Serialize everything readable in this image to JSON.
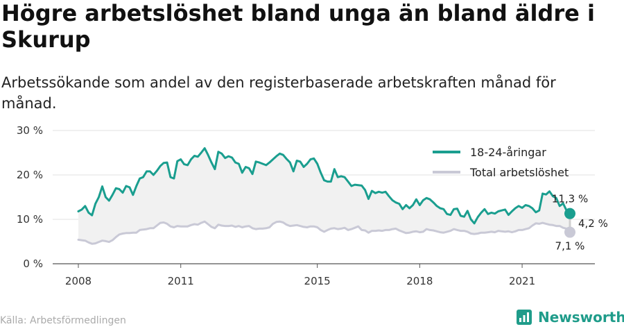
{
  "title": "Högre arbetslöshet bland unga än bland äldre i Skurup",
  "subtitle": "Arbetssökande som andel av den registerbaserade arbetskraften månad för månad.",
  "source": "Källa: Arbetsförmedlingen",
  "brand": "Newsworthy",
  "colors": {
    "youth": "#1a9e8f",
    "total": "#c9c9d6",
    "band": "#f1f1f1",
    "brand": "#1f9c8a"
  },
  "chart_data": {
    "type": "line",
    "xlabel": "",
    "ylabel": "",
    "ylim": [
      0,
      30
    ],
    "yticks": [
      0,
      10,
      20,
      30
    ],
    "ytick_labels": [
      "0 %",
      "10 %",
      "20 %",
      "30 %"
    ],
    "xlim": [
      2008.0,
      2022.4
    ],
    "xticks": [
      2008,
      2011,
      2015,
      2018,
      2021
    ],
    "xtick_labels": [
      "2008",
      "2011",
      "2015",
      "2018",
      "2021"
    ],
    "grid": true,
    "legend_position": "top-right",
    "series": [
      {
        "name": "18-24-åringar",
        "color": "#1a9e8f",
        "end_label": "11,3 %",
        "points": [
          [
            2008.0,
            11.8
          ],
          [
            2008.1,
            12.2
          ],
          [
            2008.2,
            13.0
          ],
          [
            2008.3,
            11.5
          ],
          [
            2008.4,
            10.9
          ],
          [
            2008.5,
            13.5
          ],
          [
            2008.6,
            15.0
          ],
          [
            2008.7,
            17.4
          ],
          [
            2008.8,
            15.0
          ],
          [
            2008.9,
            14.2
          ],
          [
            2009.0,
            15.5
          ],
          [
            2009.1,
            17.0
          ],
          [
            2009.2,
            16.8
          ],
          [
            2009.3,
            16.0
          ],
          [
            2009.4,
            17.5
          ],
          [
            2009.5,
            17.2
          ],
          [
            2009.6,
            15.5
          ],
          [
            2009.7,
            17.5
          ],
          [
            2009.8,
            19.2
          ],
          [
            2009.9,
            19.5
          ],
          [
            2010.0,
            20.8
          ],
          [
            2010.1,
            20.8
          ],
          [
            2010.2,
            20.0
          ],
          [
            2010.3,
            20.9
          ],
          [
            2010.4,
            22.0
          ],
          [
            2010.5,
            22.7
          ],
          [
            2010.6,
            22.8
          ],
          [
            2010.7,
            19.5
          ],
          [
            2010.8,
            19.2
          ],
          [
            2010.9,
            23.1
          ],
          [
            2011.0,
            23.5
          ],
          [
            2011.1,
            22.4
          ],
          [
            2011.2,
            22.2
          ],
          [
            2011.3,
            23.5
          ],
          [
            2011.4,
            24.3
          ],
          [
            2011.5,
            24.1
          ],
          [
            2011.6,
            25.0
          ],
          [
            2011.7,
            26.0
          ],
          [
            2011.8,
            24.5
          ],
          [
            2011.9,
            22.8
          ],
          [
            2012.0,
            21.3
          ],
          [
            2012.1,
            25.2
          ],
          [
            2012.2,
            24.8
          ],
          [
            2012.3,
            23.8
          ],
          [
            2012.4,
            24.2
          ],
          [
            2012.5,
            23.9
          ],
          [
            2012.6,
            22.8
          ],
          [
            2012.7,
            22.5
          ],
          [
            2012.8,
            20.5
          ],
          [
            2012.9,
            21.8
          ],
          [
            2013.0,
            21.5
          ],
          [
            2013.1,
            20.2
          ],
          [
            2013.2,
            23.0
          ],
          [
            2013.3,
            22.8
          ],
          [
            2013.4,
            22.5
          ],
          [
            2013.5,
            22.2
          ],
          [
            2013.6,
            22.8
          ],
          [
            2013.7,
            23.5
          ],
          [
            2013.8,
            24.2
          ],
          [
            2013.9,
            24.8
          ],
          [
            2014.0,
            24.5
          ],
          [
            2014.1,
            23.6
          ],
          [
            2014.2,
            22.8
          ],
          [
            2014.3,
            20.8
          ],
          [
            2014.4,
            23.2
          ],
          [
            2014.5,
            23.0
          ],
          [
            2014.6,
            21.8
          ],
          [
            2014.7,
            22.5
          ],
          [
            2014.8,
            23.5
          ],
          [
            2014.9,
            23.7
          ],
          [
            2015.0,
            22.5
          ],
          [
            2015.1,
            20.5
          ],
          [
            2015.2,
            18.8
          ],
          [
            2015.3,
            18.5
          ],
          [
            2015.4,
            18.5
          ],
          [
            2015.5,
            21.3
          ],
          [
            2015.6,
            19.5
          ],
          [
            2015.7,
            19.7
          ],
          [
            2015.8,
            19.5
          ],
          [
            2015.9,
            18.5
          ],
          [
            2016.0,
            17.5
          ],
          [
            2016.1,
            17.8
          ],
          [
            2016.2,
            17.7
          ],
          [
            2016.3,
            17.6
          ],
          [
            2016.4,
            16.6
          ],
          [
            2016.5,
            14.6
          ],
          [
            2016.6,
            16.4
          ],
          [
            2016.7,
            15.9
          ],
          [
            2016.8,
            16.2
          ],
          [
            2016.9,
            16.0
          ],
          [
            2017.0,
            16.2
          ],
          [
            2017.1,
            15.2
          ],
          [
            2017.2,
            14.3
          ],
          [
            2017.3,
            13.8
          ],
          [
            2017.4,
            13.5
          ],
          [
            2017.5,
            12.3
          ],
          [
            2017.6,
            13.2
          ],
          [
            2017.7,
            12.5
          ],
          [
            2017.8,
            13.2
          ],
          [
            2017.9,
            14.5
          ],
          [
            2018.0,
            13.2
          ],
          [
            2018.1,
            14.3
          ],
          [
            2018.2,
            14.8
          ],
          [
            2018.3,
            14.5
          ],
          [
            2018.4,
            13.8
          ],
          [
            2018.5,
            13.0
          ],
          [
            2018.6,
            12.5
          ],
          [
            2018.7,
            12.3
          ],
          [
            2018.8,
            11.2
          ],
          [
            2018.9,
            11.0
          ],
          [
            2019.0,
            12.3
          ],
          [
            2019.1,
            12.4
          ],
          [
            2019.2,
            10.8
          ],
          [
            2019.3,
            10.6
          ],
          [
            2019.4,
            11.9
          ],
          [
            2019.5,
            10.0
          ],
          [
            2019.6,
            9.1
          ],
          [
            2019.7,
            10.5
          ],
          [
            2019.8,
            11.5
          ],
          [
            2019.9,
            12.3
          ],
          [
            2020.0,
            11.2
          ],
          [
            2020.1,
            11.5
          ],
          [
            2020.2,
            11.3
          ],
          [
            2020.3,
            11.8
          ],
          [
            2020.4,
            12.0
          ],
          [
            2020.5,
            12.2
          ],
          [
            2020.6,
            11.0
          ],
          [
            2020.7,
            11.8
          ],
          [
            2020.8,
            12.5
          ],
          [
            2020.9,
            13.0
          ],
          [
            2021.0,
            12.6
          ],
          [
            2021.1,
            13.2
          ],
          [
            2021.2,
            13.0
          ],
          [
            2021.3,
            12.5
          ],
          [
            2021.4,
            11.6
          ],
          [
            2021.5,
            12.0
          ],
          [
            2021.6,
            15.8
          ],
          [
            2021.7,
            15.6
          ],
          [
            2021.8,
            16.3
          ],
          [
            2021.9,
            15.2
          ],
          [
            2022.0,
            14.8
          ],
          [
            2022.1,
            13.0
          ],
          [
            2022.2,
            13.6
          ],
          [
            2022.3,
            12.0
          ],
          [
            2022.35,
            10.5
          ],
          [
            2022.4,
            11.3
          ]
        ]
      },
      {
        "name": "Total arbetslöshet",
        "color": "#c9c9d6",
        "end_label": "7,1 %",
        "points": [
          [
            2008.0,
            5.4
          ],
          [
            2008.1,
            5.3
          ],
          [
            2008.2,
            5.2
          ],
          [
            2008.3,
            4.8
          ],
          [
            2008.4,
            4.5
          ],
          [
            2008.5,
            4.6
          ],
          [
            2008.6,
            4.9
          ],
          [
            2008.7,
            5.2
          ],
          [
            2008.8,
            5.1
          ],
          [
            2008.9,
            4.9
          ],
          [
            2009.0,
            5.3
          ],
          [
            2009.1,
            6.0
          ],
          [
            2009.2,
            6.6
          ],
          [
            2009.3,
            6.8
          ],
          [
            2009.4,
            6.9
          ],
          [
            2009.5,
            6.9
          ],
          [
            2009.6,
            7.0
          ],
          [
            2009.7,
            7.0
          ],
          [
            2009.8,
            7.6
          ],
          [
            2009.9,
            7.7
          ],
          [
            2010.0,
            7.8
          ],
          [
            2010.1,
            8.0
          ],
          [
            2010.2,
            8.0
          ],
          [
            2010.3,
            8.6
          ],
          [
            2010.4,
            9.2
          ],
          [
            2010.5,
            9.3
          ],
          [
            2010.6,
            9.0
          ],
          [
            2010.7,
            8.4
          ],
          [
            2010.8,
            8.2
          ],
          [
            2010.9,
            8.5
          ],
          [
            2011.0,
            8.4
          ],
          [
            2011.1,
            8.4
          ],
          [
            2011.2,
            8.4
          ],
          [
            2011.3,
            8.7
          ],
          [
            2011.4,
            8.9
          ],
          [
            2011.5,
            8.8
          ],
          [
            2011.6,
            9.2
          ],
          [
            2011.7,
            9.5
          ],
          [
            2011.8,
            8.9
          ],
          [
            2011.9,
            8.3
          ],
          [
            2012.0,
            8.0
          ],
          [
            2012.1,
            8.8
          ],
          [
            2012.2,
            8.6
          ],
          [
            2012.3,
            8.5
          ],
          [
            2012.4,
            8.5
          ],
          [
            2012.5,
            8.6
          ],
          [
            2012.6,
            8.3
          ],
          [
            2012.7,
            8.5
          ],
          [
            2012.8,
            8.2
          ],
          [
            2012.9,
            8.4
          ],
          [
            2013.0,
            8.5
          ],
          [
            2013.1,
            8.0
          ],
          [
            2013.2,
            7.8
          ],
          [
            2013.3,
            7.9
          ],
          [
            2013.4,
            7.9
          ],
          [
            2013.5,
            8.0
          ],
          [
            2013.6,
            8.2
          ],
          [
            2013.7,
            9.0
          ],
          [
            2013.8,
            9.4
          ],
          [
            2013.9,
            9.5
          ],
          [
            2014.0,
            9.3
          ],
          [
            2014.1,
            8.8
          ],
          [
            2014.2,
            8.5
          ],
          [
            2014.3,
            8.6
          ],
          [
            2014.4,
            8.7
          ],
          [
            2014.5,
            8.5
          ],
          [
            2014.6,
            8.3
          ],
          [
            2014.7,
            8.2
          ],
          [
            2014.8,
            8.4
          ],
          [
            2014.9,
            8.4
          ],
          [
            2015.0,
            8.2
          ],
          [
            2015.1,
            7.6
          ],
          [
            2015.2,
            7.2
          ],
          [
            2015.3,
            7.6
          ],
          [
            2015.4,
            7.9
          ],
          [
            2015.5,
            8.0
          ],
          [
            2015.6,
            7.8
          ],
          [
            2015.7,
            7.9
          ],
          [
            2015.8,
            8.1
          ],
          [
            2015.9,
            7.6
          ],
          [
            2016.0,
            7.8
          ],
          [
            2016.1,
            8.1
          ],
          [
            2016.2,
            8.4
          ],
          [
            2016.3,
            7.6
          ],
          [
            2016.4,
            7.5
          ],
          [
            2016.5,
            7.0
          ],
          [
            2016.6,
            7.4
          ],
          [
            2016.7,
            7.4
          ],
          [
            2016.8,
            7.5
          ],
          [
            2016.9,
            7.4
          ],
          [
            2017.0,
            7.6
          ],
          [
            2017.1,
            7.6
          ],
          [
            2017.2,
            7.8
          ],
          [
            2017.3,
            7.9
          ],
          [
            2017.4,
            7.5
          ],
          [
            2017.5,
            7.2
          ],
          [
            2017.6,
            6.9
          ],
          [
            2017.7,
            7.0
          ],
          [
            2017.8,
            7.2
          ],
          [
            2017.9,
            7.3
          ],
          [
            2018.0,
            7.1
          ],
          [
            2018.1,
            7.2
          ],
          [
            2018.2,
            7.8
          ],
          [
            2018.3,
            7.6
          ],
          [
            2018.4,
            7.5
          ],
          [
            2018.5,
            7.3
          ],
          [
            2018.6,
            7.1
          ],
          [
            2018.7,
            7.0
          ],
          [
            2018.8,
            7.2
          ],
          [
            2018.9,
            7.4
          ],
          [
            2019.0,
            7.8
          ],
          [
            2019.1,
            7.6
          ],
          [
            2019.2,
            7.4
          ],
          [
            2019.3,
            7.4
          ],
          [
            2019.4,
            7.2
          ],
          [
            2019.5,
            6.8
          ],
          [
            2019.6,
            6.7
          ],
          [
            2019.7,
            6.8
          ],
          [
            2019.8,
            7.0
          ],
          [
            2019.9,
            7.0
          ],
          [
            2020.0,
            7.1
          ],
          [
            2020.1,
            7.2
          ],
          [
            2020.2,
            7.1
          ],
          [
            2020.3,
            7.4
          ],
          [
            2020.4,
            7.3
          ],
          [
            2020.5,
            7.2
          ],
          [
            2020.6,
            7.3
          ],
          [
            2020.7,
            7.1
          ],
          [
            2020.8,
            7.3
          ],
          [
            2020.9,
            7.6
          ],
          [
            2021.0,
            7.6
          ],
          [
            2021.1,
            7.8
          ],
          [
            2021.2,
            8.0
          ],
          [
            2021.3,
            8.6
          ],
          [
            2021.4,
            9.1
          ],
          [
            2021.5,
            9.0
          ],
          [
            2021.6,
            9.2
          ],
          [
            2021.7,
            9.0
          ],
          [
            2021.8,
            8.8
          ],
          [
            2021.9,
            8.7
          ],
          [
            2022.0,
            8.5
          ],
          [
            2022.1,
            8.5
          ],
          [
            2022.2,
            8.1
          ],
          [
            2022.3,
            7.9
          ],
          [
            2022.35,
            7.6
          ],
          [
            2022.4,
            7.1
          ]
        ]
      }
    ],
    "gap_label": "4,2 %"
  }
}
